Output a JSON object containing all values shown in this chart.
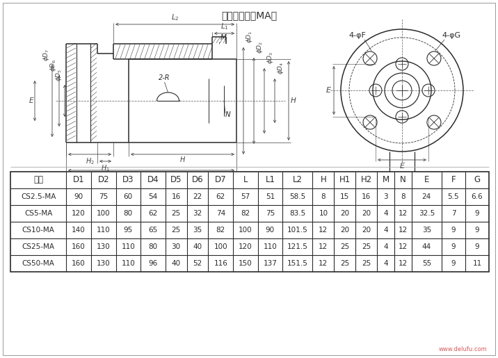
{
  "title": "电机联接座（MA）",
  "table_headers": [
    "型号",
    "D1",
    "D2",
    "D3",
    "D4",
    "D5",
    "D6",
    "D7",
    "L",
    "L1",
    "L2",
    "H",
    "H1",
    "H2",
    "M",
    "N",
    "E",
    "F",
    "G"
  ],
  "table_rows": [
    [
      "CS2.5-MA",
      "90",
      "75",
      "60",
      "54",
      "16",
      "22",
      "62",
      "57",
      "51",
      "58.5",
      "8",
      "15",
      "16",
      "3",
      "8",
      "24",
      "5.5",
      "6.6"
    ],
    [
      "CS5-MA",
      "120",
      "100",
      "80",
      "62",
      "25",
      "32",
      "74",
      "82",
      "75",
      "83.5",
      "10",
      "20",
      "20",
      "4",
      "12",
      "32.5",
      "7",
      "9"
    ],
    [
      "CS10-MA",
      "140",
      "110",
      "95",
      "65",
      "25",
      "35",
      "82",
      "100",
      "90",
      "101.5",
      "12",
      "20",
      "20",
      "4",
      "12",
      "35",
      "9",
      "9"
    ],
    [
      "CS25-MA",
      "160",
      "130",
      "110",
      "80",
      "30",
      "40",
      "100",
      "120",
      "110",
      "121.5",
      "12",
      "25",
      "25",
      "4",
      "12",
      "44",
      "9",
      "9"
    ],
    [
      "CS50-MA",
      "160",
      "130",
      "110",
      "96",
      "40",
      "52",
      "116",
      "150",
      "137",
      "151.5",
      "12",
      "25",
      "25",
      "4",
      "12",
      "55",
      "9",
      "11"
    ]
  ],
  "bg_color": "#ffffff",
  "line_color": "#2a2a2a",
  "dim_color": "#444444",
  "center_line_color": "#666666"
}
